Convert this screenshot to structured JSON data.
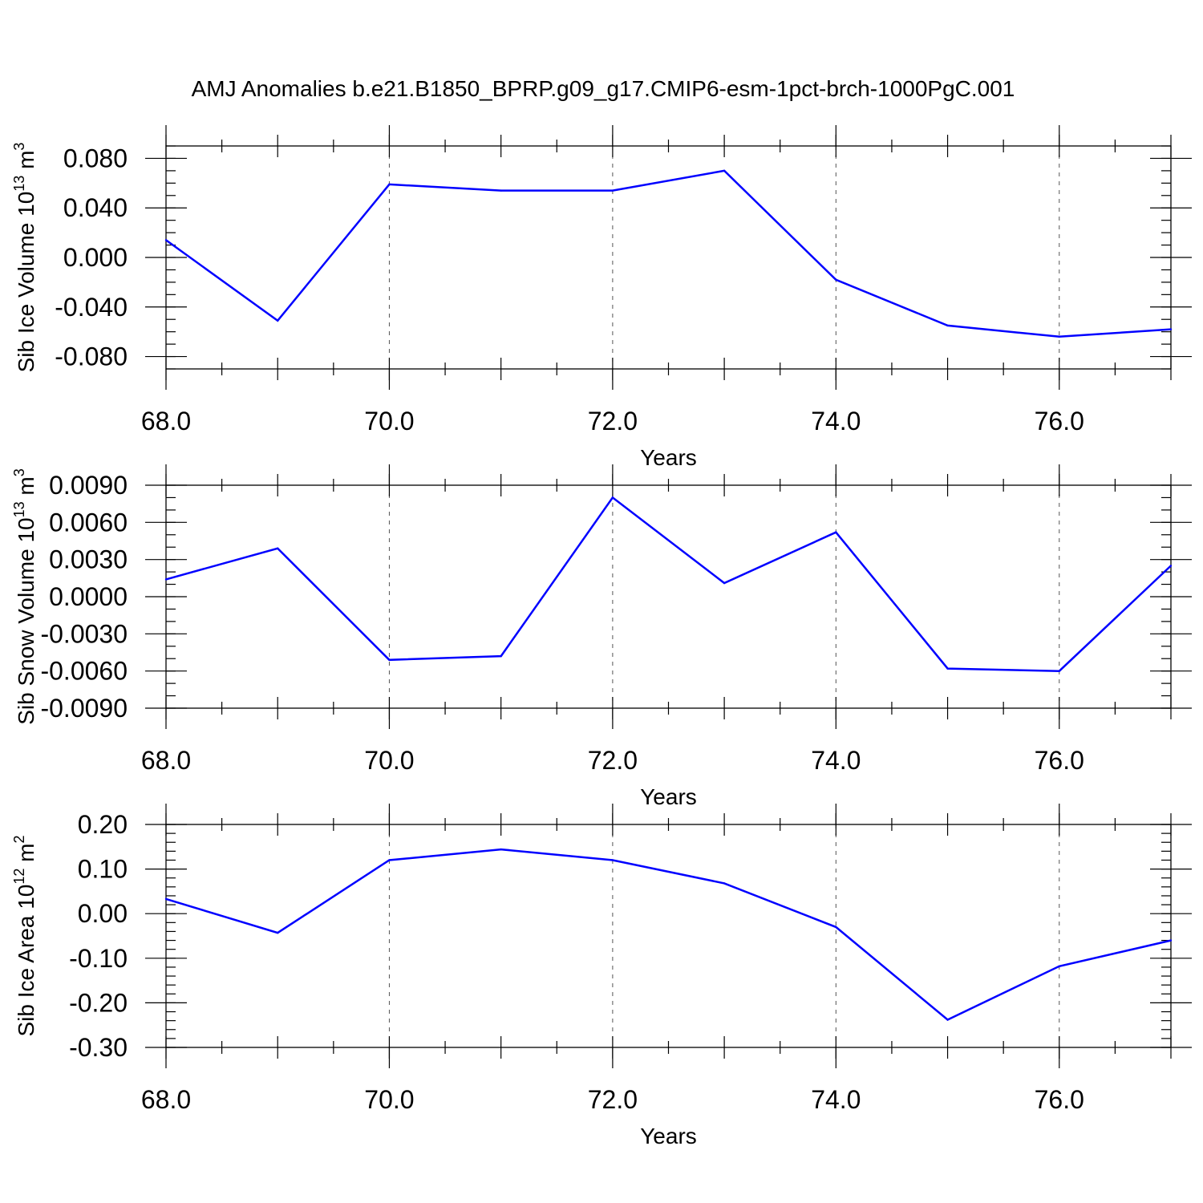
{
  "title": "AMJ Anomalies b.e21.B1850_BPRP.g09_g17.CMIP6-esm-1pct-brch-1000PgC.001",
  "chart_data": [
    {
      "type": "line",
      "ylabel": {
        "main": "Sib Ice Volume 10",
        "exp": "13",
        "unit": " m",
        "unit_exp": "3"
      },
      "xlabel": "Years",
      "x": [
        68,
        69,
        70,
        71,
        72,
        73,
        74,
        75,
        76,
        77
      ],
      "series": [
        {
          "values": [
            0.014,
            -0.051,
            0.059,
            0.054,
            0.054,
            0.07,
            -0.018,
            -0.055,
            -0.064,
            -0.058
          ]
        }
      ],
      "xlim": [
        68,
        77
      ],
      "ylim": [
        -0.09,
        0.09
      ],
      "xticks": [
        68,
        70,
        72,
        74,
        76
      ],
      "xtick_labels": [
        "68.0",
        "70.0",
        "72.0",
        "74.0",
        "76.0"
      ],
      "yticks": [
        0.08,
        0.04,
        0.0,
        -0.04,
        -0.08
      ],
      "ytick_labels": [
        "0.080",
        "0.040",
        "0.000",
        "-0.040",
        "-0.080"
      ],
      "y_minor_step": 0.01,
      "grid": "x-major dashed",
      "color": "#0000ff"
    },
    {
      "type": "line",
      "ylabel": {
        "main": "Sib Snow Volume 10",
        "exp": "13",
        "unit": " m",
        "unit_exp": "3"
      },
      "xlabel": "Years",
      "x": [
        68,
        69,
        70,
        71,
        72,
        73,
        74,
        75,
        76,
        77
      ],
      "series": [
        {
          "values": [
            0.0014,
            0.0039,
            -0.0051,
            -0.0048,
            0.008,
            0.0011,
            0.0052,
            -0.0058,
            -0.006,
            0.0025
          ]
        }
      ],
      "xlim": [
        68,
        77
      ],
      "ylim": [
        -0.009,
        0.009
      ],
      "xticks": [
        68,
        70,
        72,
        74,
        76
      ],
      "xtick_labels": [
        "68.0",
        "70.0",
        "72.0",
        "74.0",
        "76.0"
      ],
      "yticks": [
        0.009,
        0.006,
        0.003,
        0.0,
        -0.003,
        -0.006,
        -0.009
      ],
      "ytick_labels": [
        "0.0090",
        "0.0060",
        "0.0030",
        "0.0000",
        "-0.0030",
        "-0.0060",
        "-0.0090"
      ],
      "y_minor_step": 0.001,
      "grid": "x-major dashed",
      "color": "#0000ff"
    },
    {
      "type": "line",
      "ylabel": {
        "main": "Sib Ice Area 10",
        "exp": "12",
        "unit": " m",
        "unit_exp": "2"
      },
      "xlabel": "Years",
      "x": [
        68,
        69,
        70,
        71,
        72,
        73,
        74,
        75,
        76,
        77
      ],
      "series": [
        {
          "values": [
            0.033,
            -0.043,
            0.12,
            0.144,
            0.12,
            0.068,
            -0.03,
            -0.238,
            -0.118,
            -0.06
          ]
        }
      ],
      "xlim": [
        68,
        77
      ],
      "ylim": [
        -0.3,
        0.2
      ],
      "xticks": [
        68,
        70,
        72,
        74,
        76
      ],
      "xtick_labels": [
        "68.0",
        "70.0",
        "72.0",
        "74.0",
        "76.0"
      ],
      "yticks": [
        0.2,
        0.1,
        0.0,
        -0.1,
        -0.2,
        -0.3
      ],
      "ytick_labels": [
        "0.20",
        "0.10",
        "0.00",
        "-0.10",
        "-0.20",
        "-0.30"
      ],
      "y_minor_step": 0.02,
      "grid": "x-major dashed",
      "color": "#0000ff"
    }
  ]
}
